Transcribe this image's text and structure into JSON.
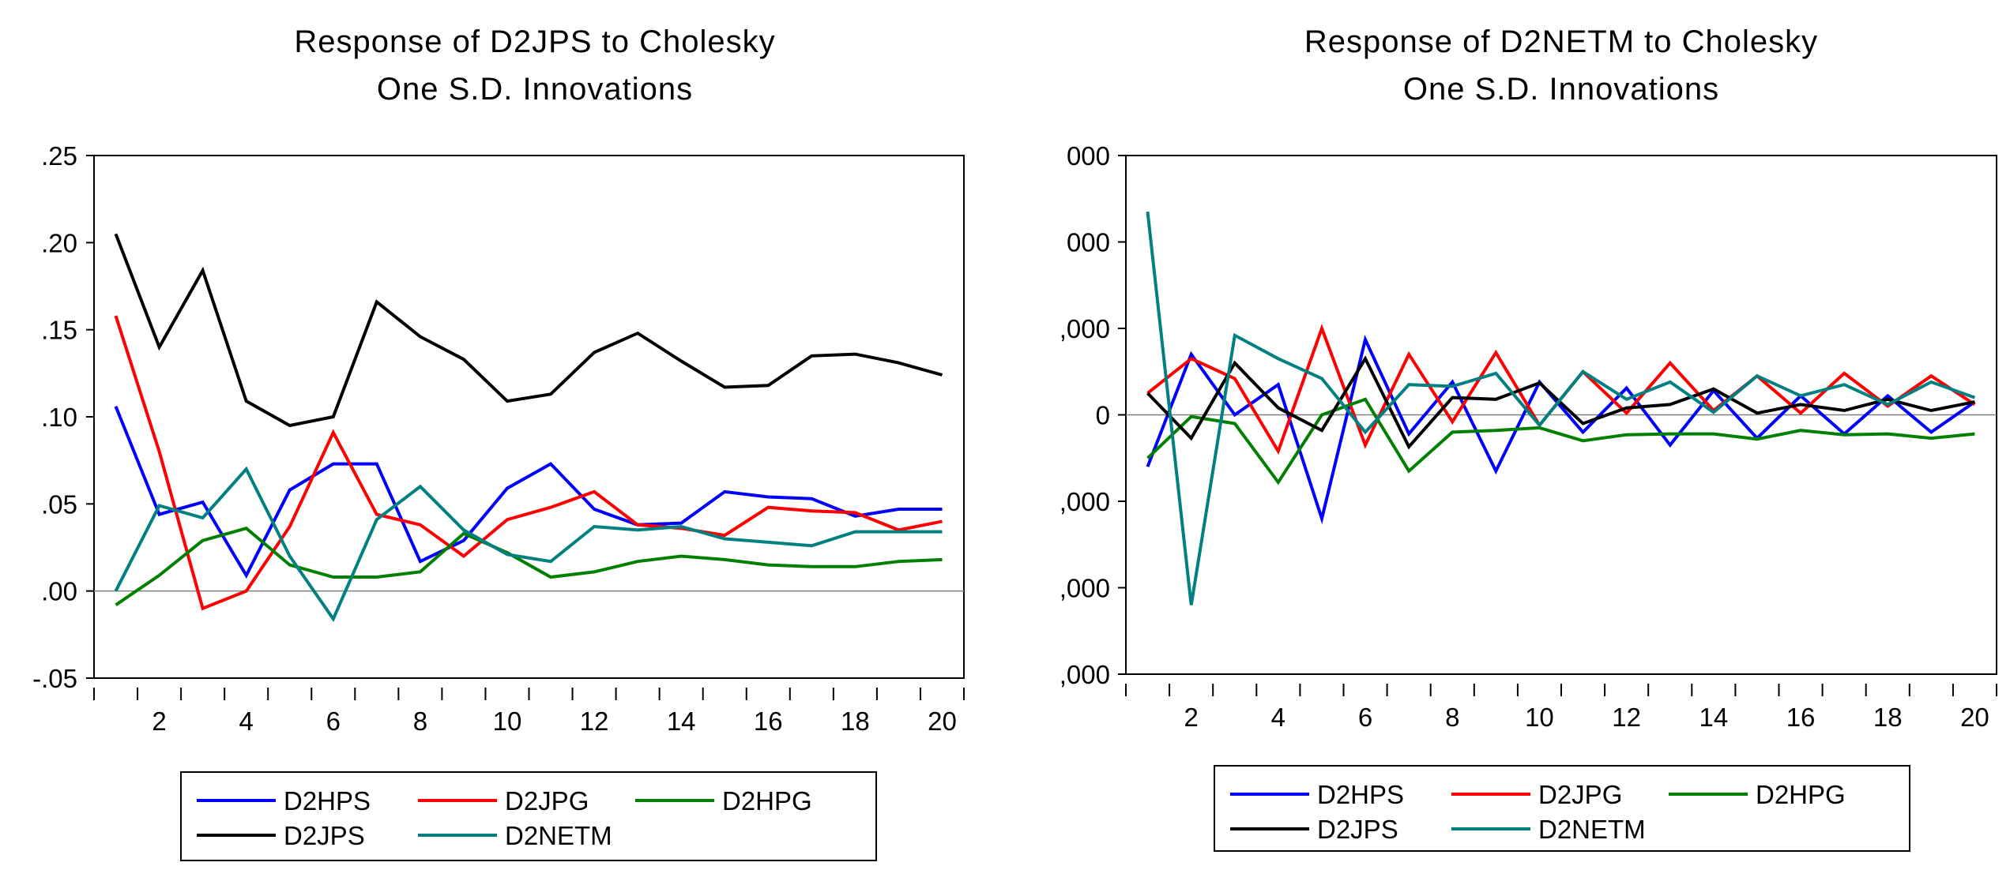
{
  "chart_data": [
    {
      "type": "line",
      "title_lines": [
        "Response of D2JPS to Cholesky",
        "One S.D. Innovations"
      ],
      "xlabel": "",
      "ylabel": "",
      "x": [
        1,
        2,
        3,
        4,
        5,
        6,
        7,
        8,
        9,
        10,
        11,
        12,
        13,
        14,
        15,
        16,
        17,
        18,
        19,
        20
      ],
      "x_ticks": [
        2,
        4,
        6,
        8,
        10,
        12,
        14,
        16,
        18,
        20
      ],
      "ylim": [
        -0.05,
        0.25
      ],
      "y_ticks": [
        -0.05,
        0.0,
        0.05,
        0.1,
        0.15,
        0.2,
        0.25
      ],
      "y_tick_labels": [
        "-.05",
        ".00",
        ".05",
        ".10",
        ".15",
        ".20",
        ".25"
      ],
      "zero_line": true,
      "grid": false,
      "legend_position": "bottom",
      "series": [
        {
          "name": "D2HPS",
          "color": "#0000ff",
          "values": [
            0.106,
            0.044,
            0.051,
            0.009,
            0.058,
            0.073,
            0.073,
            0.017,
            0.029,
            0.059,
            0.073,
            0.047,
            0.038,
            0.039,
            0.057,
            0.054,
            0.053,
            0.043,
            0.047,
            0.047
          ]
        },
        {
          "name": "D2JPG",
          "color": "#ff0000",
          "values": [
            0.158,
            0.08,
            -0.01,
            0.0,
            0.037,
            0.091,
            0.044,
            0.038,
            0.02,
            0.041,
            0.048,
            0.057,
            0.038,
            0.036,
            0.032,
            0.048,
            0.046,
            0.045,
            0.035,
            0.04
          ]
        },
        {
          "name": "D2HPG",
          "color": "#008000",
          "values": [
            -0.008,
            0.009,
            0.029,
            0.036,
            0.015,
            0.008,
            0.008,
            0.011,
            0.033,
            0.022,
            0.008,
            0.011,
            0.017,
            0.02,
            0.018,
            0.015,
            0.014,
            0.014,
            0.017,
            0.018
          ]
        },
        {
          "name": "D2JPS",
          "color": "#000000",
          "values": [
            0.205,
            0.14,
            0.184,
            0.109,
            0.095,
            0.1,
            0.166,
            0.146,
            0.133,
            0.109,
            0.113,
            0.137,
            0.148,
            0.132,
            0.117,
            0.118,
            0.135,
            0.136,
            0.131,
            0.124
          ]
        },
        {
          "name": "D2NETM",
          "color": "#008080",
          "values": [
            0.0,
            0.049,
            0.042,
            0.07,
            0.02,
            -0.016,
            0.041,
            0.06,
            0.035,
            0.021,
            0.017,
            0.037,
            0.035,
            0.037,
            0.03,
            0.028,
            0.026,
            0.034,
            0.034,
            0.034
          ]
        }
      ]
    },
    {
      "type": "line",
      "title_lines": [
        "Response of D2NETM to Cholesky",
        "One S.D. Innovations"
      ],
      "xlabel": "",
      "ylabel": "",
      "x": [
        1,
        2,
        3,
        4,
        5,
        6,
        7,
        8,
        9,
        10,
        11,
        12,
        13,
        14,
        15,
        16,
        17,
        18,
        19,
        20
      ],
      "x_ticks": [
        2,
        4,
        6,
        8,
        10,
        12,
        14,
        16,
        18,
        20
      ],
      "ylim": [
        -3,
        3
      ],
      "y_ticks": [
        -3,
        -2,
        -1,
        0,
        1,
        2,
        3
      ],
      "y_tick_labels": [
        ",000",
        ",000",
        ",000",
        "0",
        ",000",
        "000",
        "000"
      ],
      "zero_line": true,
      "grid": false,
      "legend_position": "bottom",
      "series": [
        {
          "name": "D2HPS",
          "color": "#0000ff",
          "values": [
            -0.6,
            0.7,
            0.0,
            0.35,
            -1.2,
            0.87,
            -0.22,
            0.38,
            -0.65,
            0.38,
            -0.2,
            0.31,
            -0.35,
            0.28,
            -0.27,
            0.22,
            -0.22,
            0.22,
            -0.2,
            0.15
          ]
        },
        {
          "name": "D2JPG",
          "color": "#ff0000",
          "values": [
            0.25,
            0.65,
            0.42,
            -0.42,
            1.0,
            -0.35,
            0.7,
            -0.08,
            0.72,
            -0.12,
            0.5,
            0.02,
            0.6,
            0.05,
            0.45,
            0.02,
            0.48,
            0.1,
            0.45,
            0.12
          ]
        },
        {
          "name": "D2HPG",
          "color": "#008000",
          "values": [
            -0.5,
            -0.02,
            -0.1,
            -0.78,
            0.0,
            0.18,
            -0.65,
            -0.2,
            -0.18,
            -0.15,
            -0.3,
            -0.23,
            -0.22,
            -0.22,
            -0.28,
            -0.18,
            -0.23,
            -0.22,
            -0.27,
            -0.22
          ]
        },
        {
          "name": "D2JPS",
          "color": "#000000",
          "values": [
            0.25,
            -0.27,
            0.6,
            0.08,
            -0.18,
            0.65,
            -0.37,
            0.2,
            0.18,
            0.37,
            -0.1,
            0.08,
            0.12,
            0.3,
            0.02,
            0.12,
            0.05,
            0.18,
            0.05,
            0.15
          ]
        },
        {
          "name": "D2NETM",
          "color": "#008080",
          "values": [
            2.35,
            -2.2,
            0.92,
            0.65,
            0.42,
            -0.2,
            0.35,
            0.33,
            0.48,
            -0.12,
            0.5,
            0.18,
            0.38,
            0.03,
            0.45,
            0.22,
            0.35,
            0.12,
            0.38,
            0.2
          ]
        }
      ]
    }
  ]
}
